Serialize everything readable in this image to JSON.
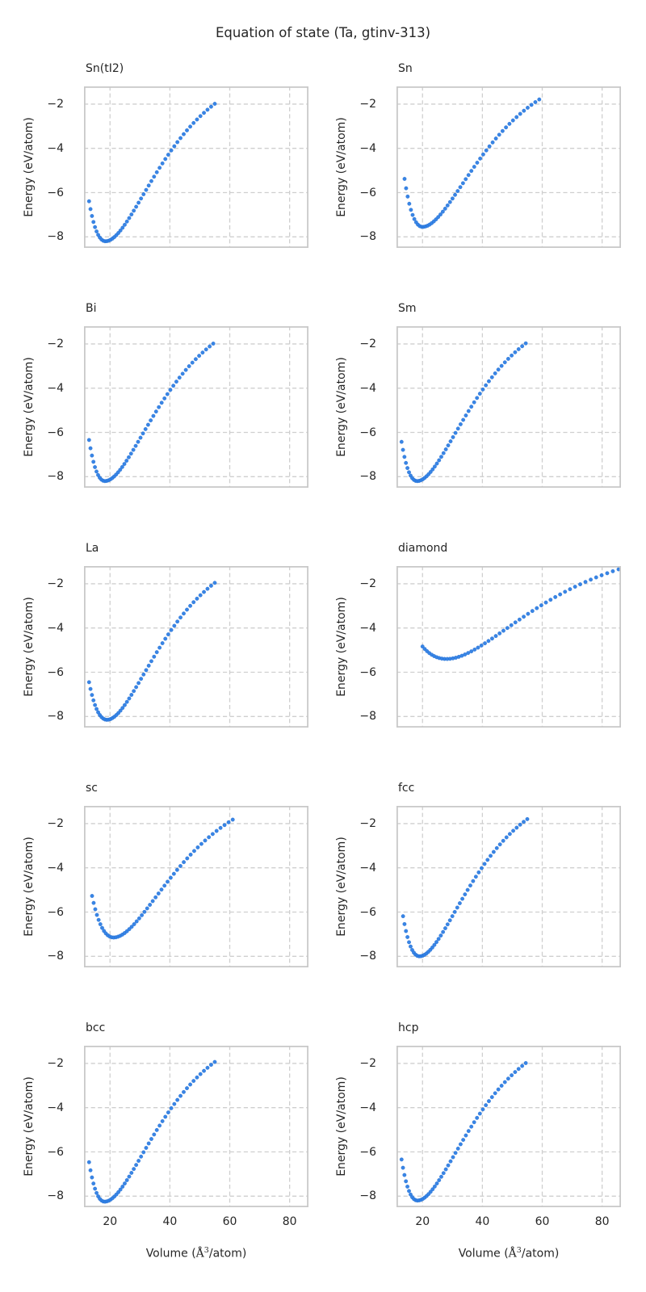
{
  "figure": {
    "title": "Equation of state (Ta, gtinv-313)",
    "background_color": "#ffffff",
    "text_color": "#262626"
  },
  "chart_data": {
    "type": "scatter",
    "layout": "grid 5 rows x 2 cols, shared axes",
    "title": "Equation of state (Ta, gtinv-313)",
    "xlabel": "Volume (Å³/atom)",
    "ylabel": "Energy (eV/atom)",
    "x_range": [
      11.3,
      86.3
    ],
    "y_range": [
      -8.5,
      -1.2
    ],
    "x_ticks": [
      20,
      40,
      60,
      80
    ],
    "x_tick_labels": [
      "20",
      "40",
      "60",
      "80"
    ],
    "y_ticks": [
      -2,
      -4,
      -6,
      -8
    ],
    "y_tick_labels": [
      "−2",
      "−4",
      "−6",
      "−8"
    ],
    "grid": "on",
    "grid_style": "dashed",
    "grid_color": "#cfcfcf",
    "spine_color": "#c9c9c9",
    "marker": {
      "shape": "circle",
      "color": "#2e7ee4",
      "edge_color": "#1a66cc",
      "radius_px": 2.25
    },
    "subplots": [
      {
        "title": "Sn(tI2)",
        "first_point": [
          13.0,
          -6.6
        ],
        "min_point": [
          18.5,
          -8.2
        ],
        "last_point": [
          55.0,
          -1.95
        ],
        "fit": {
          "V0": 18.5,
          "E0": -8.2,
          "a": 0.056,
          "k_left": 1.25,
          "V_start": 13.0,
          "V_end": 55.0,
          "n_points": 52
        }
      },
      {
        "title": "Sn",
        "first_point": [
          14.0,
          -5.6
        ],
        "min_point": [
          20.0,
          -7.55
        ],
        "last_point": [
          59.0,
          -1.8
        ],
        "fit": {
          "V0": 20.0,
          "E0": -7.55,
          "a": 0.053,
          "k_left": 1.35,
          "V_start": 14.0,
          "V_end": 59.0,
          "n_points": 52
        }
      },
      {
        "title": "Bi",
        "first_point": [
          13.0,
          -6.6
        ],
        "min_point": [
          18.3,
          -8.2
        ],
        "last_point": [
          54.5,
          -1.97
        ],
        "fit": {
          "V0": 18.3,
          "E0": -8.2,
          "a": 0.0565,
          "k_left": 1.3,
          "V_start": 13.0,
          "V_end": 54.5,
          "n_points": 52
        }
      },
      {
        "title": "Sm",
        "first_point": [
          13.0,
          -6.55
        ],
        "min_point": [
          18.2,
          -8.2
        ],
        "last_point": [
          54.5,
          -1.97
        ],
        "fit": {
          "V0": 18.2,
          "E0": -8.2,
          "a": 0.0565,
          "k_left": 1.3,
          "V_start": 13.0,
          "V_end": 54.5,
          "n_points": 52
        }
      },
      {
        "title": "La",
        "first_point": [
          13.0,
          -6.6
        ],
        "min_point": [
          19.0,
          -8.15
        ],
        "last_point": [
          55.0,
          -2.0
        ],
        "fit": {
          "V0": 19.0,
          "E0": -8.15,
          "a": 0.057,
          "k_left": 1.1,
          "V_start": 13.0,
          "V_end": 55.0,
          "n_points": 52
        }
      },
      {
        "title": "diamond",
        "first_point": [
          20.0,
          -4.65
        ],
        "min_point": [
          28.0,
          -5.4
        ],
        "last_point": [
          85.5,
          -1.35
        ],
        "fit": {
          "V0": 28.0,
          "E0": -5.4,
          "a": 0.035,
          "k_left": 1.0,
          "V_start": 20.0,
          "V_end": 85.5,
          "n_points": 52
        }
      },
      {
        "title": "sc",
        "first_point": [
          14.0,
          -5.3
        ],
        "min_point": [
          21.2,
          -7.15
        ],
        "last_point": [
          61.0,
          -1.8
        ],
        "fit": {
          "V0": 21.2,
          "E0": -7.15,
          "a": 0.05,
          "k_left": 1.15,
          "V_start": 14.0,
          "V_end": 61.0,
          "n_points": 52
        }
      },
      {
        "title": "fcc",
        "first_point": [
          13.5,
          -6.2
        ],
        "min_point": [
          19.0,
          -8.0
        ],
        "last_point": [
          55.0,
          -1.8
        ],
        "fit": {
          "V0": 19.0,
          "E0": -8.0,
          "a": 0.059,
          "k_left": 1.2,
          "V_start": 13.5,
          "V_end": 55.0,
          "n_points": 52
        }
      },
      {
        "title": "bcc",
        "first_point": [
          13.0,
          -6.6
        ],
        "min_point": [
          18.2,
          -8.25
        ],
        "last_point": [
          55.0,
          -1.97
        ],
        "fit": {
          "V0": 18.2,
          "E0": -8.25,
          "a": 0.0565,
          "k_left": 1.3,
          "V_start": 13.0,
          "V_end": 55.0,
          "n_points": 52
        }
      },
      {
        "title": "hcp",
        "first_point": [
          13.0,
          -6.55
        ],
        "min_point": [
          18.3,
          -8.2
        ],
        "last_point": [
          54.5,
          -1.97
        ],
        "fit": {
          "V0": 18.3,
          "E0": -8.2,
          "a": 0.0565,
          "k_left": 1.3,
          "V_start": 13.0,
          "V_end": 54.5,
          "n_points": 52
        }
      }
    ]
  }
}
